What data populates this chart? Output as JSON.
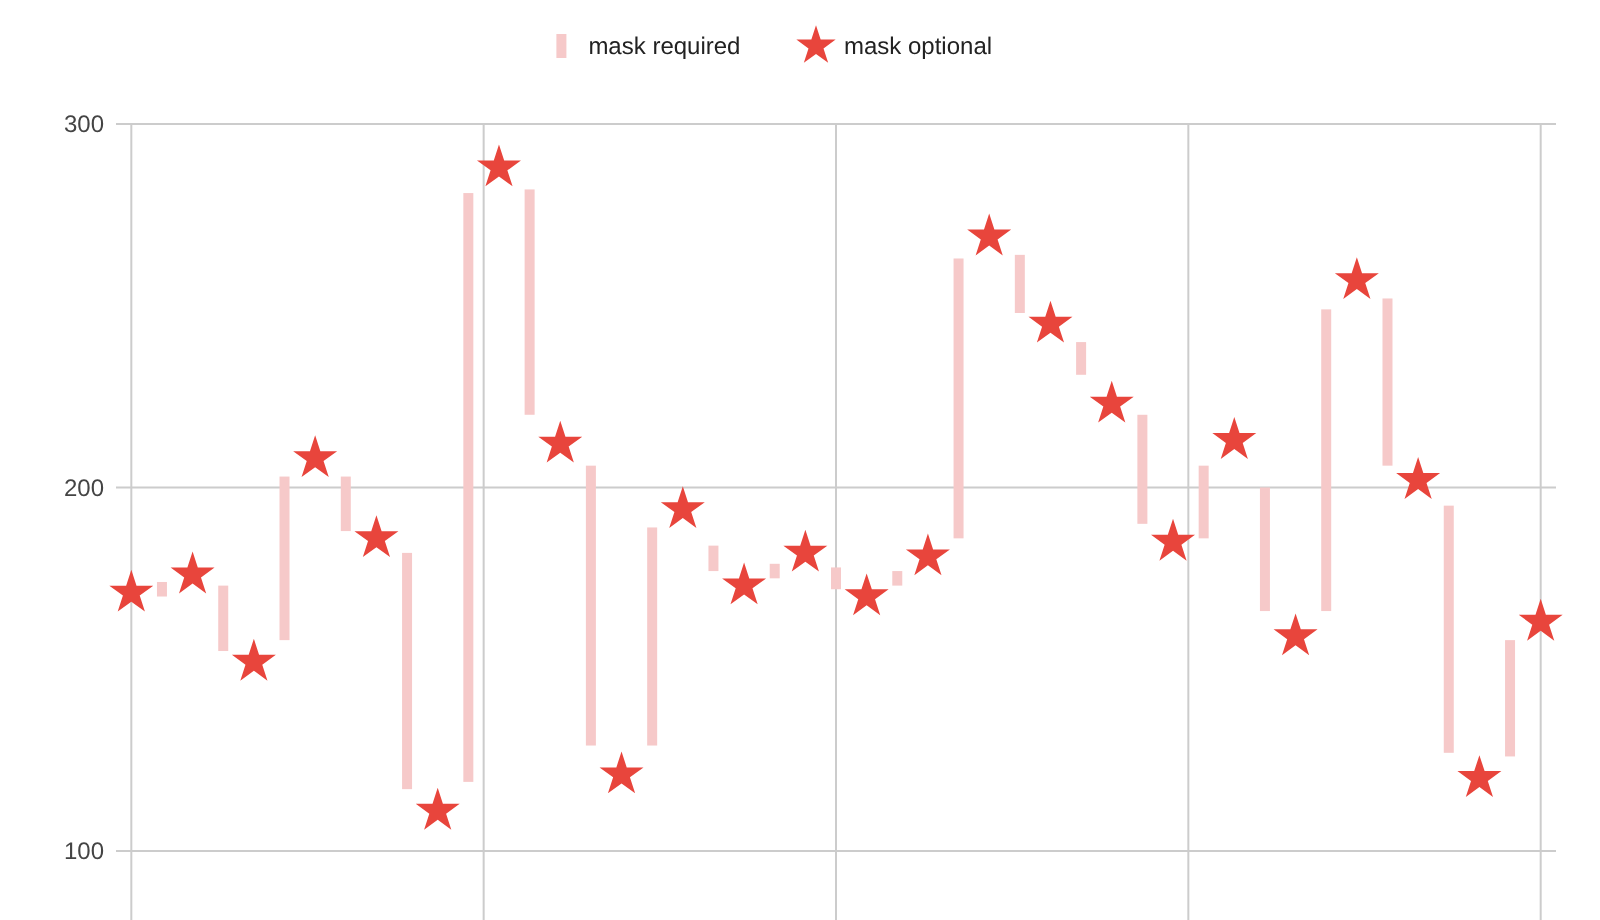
{
  "chart_data": {
    "type": "scatter",
    "categories": [
      null,
      null,
      null,
      null,
      null,
      null,
      null,
      null,
      null,
      null,
      null,
      null,
      null,
      null,
      null,
      null,
      null,
      null,
      null,
      null,
      null,
      null,
      null,
      null,
      null,
      null,
      null,
      null,
      null,
      null,
      null,
      null,
      null,
      null,
      null,
      null,
      null,
      null,
      null,
      null,
      null,
      null,
      null,
      null,
      null,
      null,
      null
    ],
    "ylim": [
      81,
      300
    ],
    "yticks": [
      100,
      200,
      300
    ],
    "grid": true,
    "legend": "top",
    "series": [
      {
        "name": "mask required",
        "type": "bar",
        "color": "#f6c9c9",
        "base": [
          null,
          170,
          null,
          155,
          null,
          158,
          null,
          188,
          null,
          117,
          null,
          119,
          null,
          220,
          null,
          129,
          null,
          129,
          null,
          177,
          null,
          175,
          null,
          172,
          null,
          173,
          null,
          186,
          null,
          248,
          null,
          231,
          null,
          190,
          null,
          186,
          null,
          166,
          null,
          166,
          null,
          206,
          null,
          127,
          null,
          126,
          null
        ],
        "values": [
          null,
          4,
          null,
          18,
          null,
          45,
          null,
          15,
          null,
          65,
          null,
          162,
          null,
          62,
          null,
          77,
          null,
          60,
          null,
          7,
          null,
          4,
          null,
          6,
          null,
          4,
          null,
          77,
          null,
          16,
          null,
          9,
          null,
          30,
          null,
          20,
          null,
          34,
          null,
          83,
          null,
          46,
          null,
          68,
          null,
          32,
          null
        ]
      },
      {
        "name": "mask optional",
        "marker": "star",
        "color": "#e8453c",
        "values": [
          171,
          null,
          176,
          null,
          152,
          null,
          208,
          null,
          186,
          null,
          111,
          null,
          288,
          null,
          212,
          null,
          121,
          null,
          194,
          null,
          173,
          null,
          182,
          null,
          170,
          null,
          181,
          null,
          269,
          null,
          245,
          null,
          223,
          null,
          185,
          null,
          213,
          null,
          159,
          null,
          257,
          null,
          202,
          null,
          120,
          null,
          163
        ]
      }
    ]
  }
}
